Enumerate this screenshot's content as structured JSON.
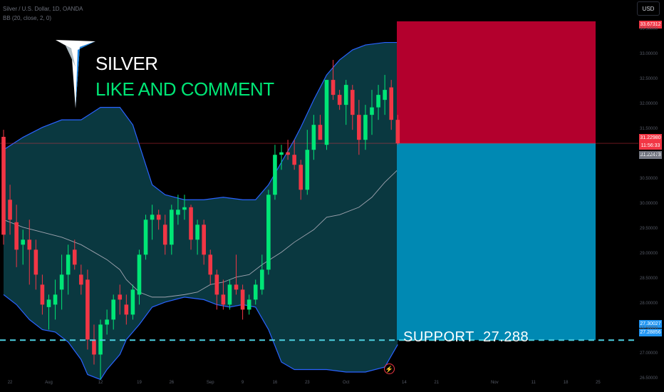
{
  "header": {
    "line1": "Silver / U.S. Dollar, 1D, OANDA",
    "line2": "BB (20, close, 2, 0)"
  },
  "price_scale": {
    "currency": "USD",
    "target_tag": "33.67312",
    "current_price_tag": "31.22980",
    "countdown_tag": "11:56:33",
    "bb_tag": "31.22473",
    "support_tag_1": "27.30027",
    "support_tag_2": "27.28856",
    "tag_colors": {
      "target": "#f23645",
      "current": "#f23645",
      "bb": "#787b86",
      "support": "#2196f3"
    }
  },
  "overlay": {
    "title": "SILVER",
    "subtitle": "LIKE AND COMMENT",
    "support_label": "SUPPORT",
    "support_value": "27.288",
    "title_color": "#ffffff",
    "subtitle_color": "#00e676"
  },
  "colors": {
    "up": "#00e676",
    "down": "#f23645",
    "band_fill": "#0b3b43",
    "band_line": "#2962ff",
    "basis_line": "#a0a4b0",
    "target_zone": "#b3002d",
    "stop_zone": "#0089b3",
    "support_line": "#4dd0e1"
  },
  "chart_data": {
    "type": "candlestick",
    "y_scale": [
      26.25,
      34.1
    ],
    "y_ticks": [
      "33.50000",
      "33.00000",
      "32.50000",
      "32.00000",
      "31.50000",
      "31.00000",
      "30.50000",
      "30.00000",
      "29.50000",
      "29.00000",
      "28.50000",
      "28.00000",
      "27.50000",
      "27.00000",
      "26.50000"
    ],
    "x_ticks": [
      {
        "i": 1,
        "label": "22"
      },
      {
        "i": 7,
        "label": "Aug"
      },
      {
        "i": 15,
        "label": "12"
      },
      {
        "i": 21,
        "label": "19"
      },
      {
        "i": 26,
        "label": "26"
      },
      {
        "i": 32,
        "label": "Sep"
      },
      {
        "i": 37,
        "label": "9"
      },
      {
        "i": 42,
        "label": "16"
      },
      {
        "i": 47,
        "label": "23"
      },
      {
        "i": 53,
        "label": "Oct"
      },
      {
        "i": 62,
        "label": "14"
      },
      {
        "i": 67,
        "label": "21"
      },
      {
        "i": 76,
        "label": "Nov"
      },
      {
        "i": 82,
        "label": "11"
      },
      {
        "i": 87,
        "label": "18"
      },
      {
        "i": 92,
        "label": "25"
      }
    ],
    "candles": [
      {
        "o": 31.36,
        "h": 31.5,
        "l": 29.2,
        "c": 29.4
      },
      {
        "o": 30.1,
        "h": 30.4,
        "l": 29.4,
        "c": 29.7
      },
      {
        "o": 29.65,
        "h": 30.0,
        "l": 28.75,
        "c": 29.1
      },
      {
        "o": 29.2,
        "h": 29.5,
        "l": 28.8,
        "c": 29.3
      },
      {
        "o": 29.3,
        "h": 29.7,
        "l": 28.4,
        "c": 29.1
      },
      {
        "o": 29.1,
        "h": 29.3,
        "l": 28.3,
        "c": 28.6
      },
      {
        "o": 28.4,
        "h": 28.6,
        "l": 27.8,
        "c": 28.0
      },
      {
        "o": 27.95,
        "h": 28.2,
        "l": 27.5,
        "c": 28.1
      },
      {
        "o": 28.0,
        "h": 28.5,
        "l": 27.7,
        "c": 28.2
      },
      {
        "o": 28.3,
        "h": 29.0,
        "l": 27.9,
        "c": 28.6
      },
      {
        "o": 28.6,
        "h": 29.2,
        "l": 28.2,
        "c": 29.0
      },
      {
        "o": 29.1,
        "h": 29.3,
        "l": 28.7,
        "c": 28.8
      },
      {
        "o": 28.6,
        "h": 28.8,
        "l": 28.2,
        "c": 28.4
      },
      {
        "o": 28.5,
        "h": 28.7,
        "l": 27.1,
        "c": 27.3
      },
      {
        "o": 27.3,
        "h": 27.6,
        "l": 26.8,
        "c": 27.0
      },
      {
        "o": 27.0,
        "h": 27.7,
        "l": 26.5,
        "c": 27.6
      },
      {
        "o": 27.6,
        "h": 27.9,
        "l": 27.4,
        "c": 27.7
      },
      {
        "o": 27.7,
        "h": 28.2,
        "l": 27.5,
        "c": 28.1
      },
      {
        "o": 28.2,
        "h": 28.4,
        "l": 27.8,
        "c": 28.1
      },
      {
        "o": 28.0,
        "h": 28.2,
        "l": 27.6,
        "c": 27.8
      },
      {
        "o": 27.8,
        "h": 28.4,
        "l": 27.7,
        "c": 28.3
      },
      {
        "o": 28.2,
        "h": 29.1,
        "l": 28.0,
        "c": 29.0
      },
      {
        "o": 29.0,
        "h": 29.8,
        "l": 28.9,
        "c": 29.7
      },
      {
        "o": 29.7,
        "h": 30.0,
        "l": 29.3,
        "c": 29.8
      },
      {
        "o": 29.8,
        "h": 29.9,
        "l": 29.5,
        "c": 29.7
      },
      {
        "o": 29.6,
        "h": 29.8,
        "l": 29.0,
        "c": 29.2
      },
      {
        "o": 29.2,
        "h": 30.0,
        "l": 29.0,
        "c": 29.9
      },
      {
        "o": 29.8,
        "h": 30.2,
        "l": 29.6,
        "c": 29.9
      },
      {
        "o": 29.9,
        "h": 30.2,
        "l": 29.7,
        "c": 29.95
      },
      {
        "o": 29.95,
        "h": 30.0,
        "l": 29.1,
        "c": 29.3
      },
      {
        "o": 29.3,
        "h": 29.7,
        "l": 29.0,
        "c": 29.6
      },
      {
        "o": 29.6,
        "h": 29.7,
        "l": 28.8,
        "c": 29.0
      },
      {
        "o": 29.0,
        "h": 29.1,
        "l": 28.4,
        "c": 28.6
      },
      {
        "o": 28.6,
        "h": 28.7,
        "l": 27.9,
        "c": 28.2
      },
      {
        "o": 28.2,
        "h": 28.5,
        "l": 27.9,
        "c": 28.0
      },
      {
        "o": 28.0,
        "h": 28.5,
        "l": 27.9,
        "c": 28.4
      },
      {
        "o": 28.4,
        "h": 29.0,
        "l": 28.2,
        "c": 28.3
      },
      {
        "o": 28.3,
        "h": 28.4,
        "l": 27.7,
        "c": 27.9
      },
      {
        "o": 27.9,
        "h": 28.2,
        "l": 27.8,
        "c": 28.1
      },
      {
        "o": 28.1,
        "h": 28.5,
        "l": 28.0,
        "c": 28.4
      },
      {
        "o": 28.3,
        "h": 29.0,
        "l": 28.2,
        "c": 28.7
      },
      {
        "o": 28.7,
        "h": 30.3,
        "l": 28.6,
        "c": 30.2
      },
      {
        "o": 30.2,
        "h": 31.2,
        "l": 30.1,
        "c": 31.0
      },
      {
        "o": 31.0,
        "h": 31.2,
        "l": 30.7,
        "c": 31.05
      },
      {
        "o": 31.05,
        "h": 31.3,
        "l": 30.9,
        "c": 31.0
      },
      {
        "o": 31.0,
        "h": 31.3,
        "l": 30.7,
        "c": 30.8
      },
      {
        "o": 30.8,
        "h": 30.9,
        "l": 30.1,
        "c": 30.3
      },
      {
        "o": 30.3,
        "h": 31.5,
        "l": 30.2,
        "c": 31.1
      },
      {
        "o": 31.1,
        "h": 31.8,
        "l": 30.9,
        "c": 31.6
      },
      {
        "o": 31.6,
        "h": 31.8,
        "l": 31.3,
        "c": 31.3
      },
      {
        "o": 31.2,
        "h": 32.5,
        "l": 31.1,
        "c": 32.5
      },
      {
        "o": 32.5,
        "h": 32.9,
        "l": 32.1,
        "c": 32.2
      },
      {
        "o": 32.2,
        "h": 32.3,
        "l": 31.9,
        "c": 32.0
      },
      {
        "o": 32.0,
        "h": 32.5,
        "l": 31.6,
        "c": 32.4
      },
      {
        "o": 32.3,
        "h": 32.4,
        "l": 31.5,
        "c": 31.8
      },
      {
        "o": 31.8,
        "h": 32.1,
        "l": 31.0,
        "c": 31.3
      },
      {
        "o": 31.3,
        "h": 32.0,
        "l": 31.1,
        "c": 31.8
      },
      {
        "o": 31.8,
        "h": 32.3,
        "l": 31.4,
        "c": 31.95
      },
      {
        "o": 31.95,
        "h": 32.4,
        "l": 31.7,
        "c": 32.2
      },
      {
        "o": 32.1,
        "h": 32.6,
        "l": 31.8,
        "c": 32.3
      },
      {
        "o": 32.35,
        "h": 32.5,
        "l": 31.5,
        "c": 31.7
      },
      {
        "o": 31.7,
        "h": 31.8,
        "l": 31.2,
        "c": 31.23
      }
    ],
    "bollinger": {
      "upper": [
        [
          0,
          31.1
        ],
        [
          3,
          31.35
        ],
        [
          6,
          31.55
        ],
        [
          9,
          31.7
        ],
        [
          12,
          31.7
        ],
        [
          15,
          31.95
        ],
        [
          18,
          31.95
        ],
        [
          20,
          31.6
        ],
        [
          22,
          30.8
        ],
        [
          23,
          30.4
        ],
        [
          25,
          30.2
        ],
        [
          28,
          30.1
        ],
        [
          31,
          30.1
        ],
        [
          34,
          30.15
        ],
        [
          37,
          30.1
        ],
        [
          39,
          30.1
        ],
        [
          41,
          30.4
        ],
        [
          43,
          30.85
        ],
        [
          45,
          31.3
        ],
        [
          46,
          31.55
        ],
        [
          48,
          32.1
        ],
        [
          50,
          32.6
        ],
        [
          52,
          32.9
        ],
        [
          54,
          33.1
        ],
        [
          56,
          33.2
        ],
        [
          59,
          33.25
        ],
        [
          61,
          33.25
        ],
        [
          61,
          31.3
        ]
      ],
      "middle": [
        [
          0,
          29.7
        ],
        [
          3,
          29.55
        ],
        [
          6,
          29.45
        ],
        [
          9,
          29.35
        ],
        [
          12,
          29.2
        ],
        [
          14,
          29.05
        ],
        [
          16,
          28.9
        ],
        [
          18,
          28.7
        ],
        [
          19,
          28.5
        ],
        [
          21,
          28.25
        ],
        [
          23,
          28.15
        ],
        [
          25,
          28.15
        ],
        [
          28,
          28.2
        ],
        [
          30,
          28.25
        ],
        [
          32,
          28.4
        ],
        [
          34,
          28.45
        ],
        [
          36,
          28.55
        ],
        [
          38,
          28.6
        ],
        [
          40,
          28.8
        ],
        [
          43,
          29.05
        ],
        [
          45,
          29.25
        ],
        [
          48,
          29.5
        ],
        [
          50,
          29.75
        ],
        [
          52,
          29.8
        ],
        [
          55,
          29.95
        ],
        [
          57,
          30.15
        ],
        [
          59,
          30.45
        ],
        [
          61,
          30.7
        ]
      ],
      "lower": [
        [
          0,
          28.2
        ],
        [
          2,
          28.0
        ],
        [
          4,
          27.7
        ],
        [
          6,
          27.5
        ],
        [
          8,
          27.45
        ],
        [
          10,
          27.25
        ],
        [
          12,
          26.9
        ],
        [
          13,
          26.6
        ],
        [
          15,
          26.5
        ],
        [
          16,
          26.7
        ],
        [
          18,
          27.0
        ],
        [
          19,
          27.3
        ],
        [
          21,
          27.6
        ],
        [
          23,
          27.95
        ],
        [
          25,
          28.05
        ],
        [
          28,
          28.15
        ],
        [
          31,
          28.1
        ],
        [
          33,
          28.0
        ],
        [
          35,
          27.95
        ],
        [
          37,
          28.0
        ],
        [
          39,
          27.95
        ],
        [
          41,
          27.5
        ],
        [
          43,
          26.85
        ],
        [
          45,
          26.7
        ],
        [
          48,
          26.7
        ],
        [
          50,
          26.7
        ],
        [
          53,
          26.65
        ],
        [
          56,
          26.65
        ],
        [
          59,
          26.75
        ],
        [
          61,
          27.2
        ]
      ]
    },
    "target_zone": {
      "top": 33.67312,
      "bottom": 31.2298
    },
    "stop_zone": {
      "top": 31.2298,
      "bottom": 27.28856
    },
    "current_price": 31.2298,
    "support_level": 27.28856
  }
}
